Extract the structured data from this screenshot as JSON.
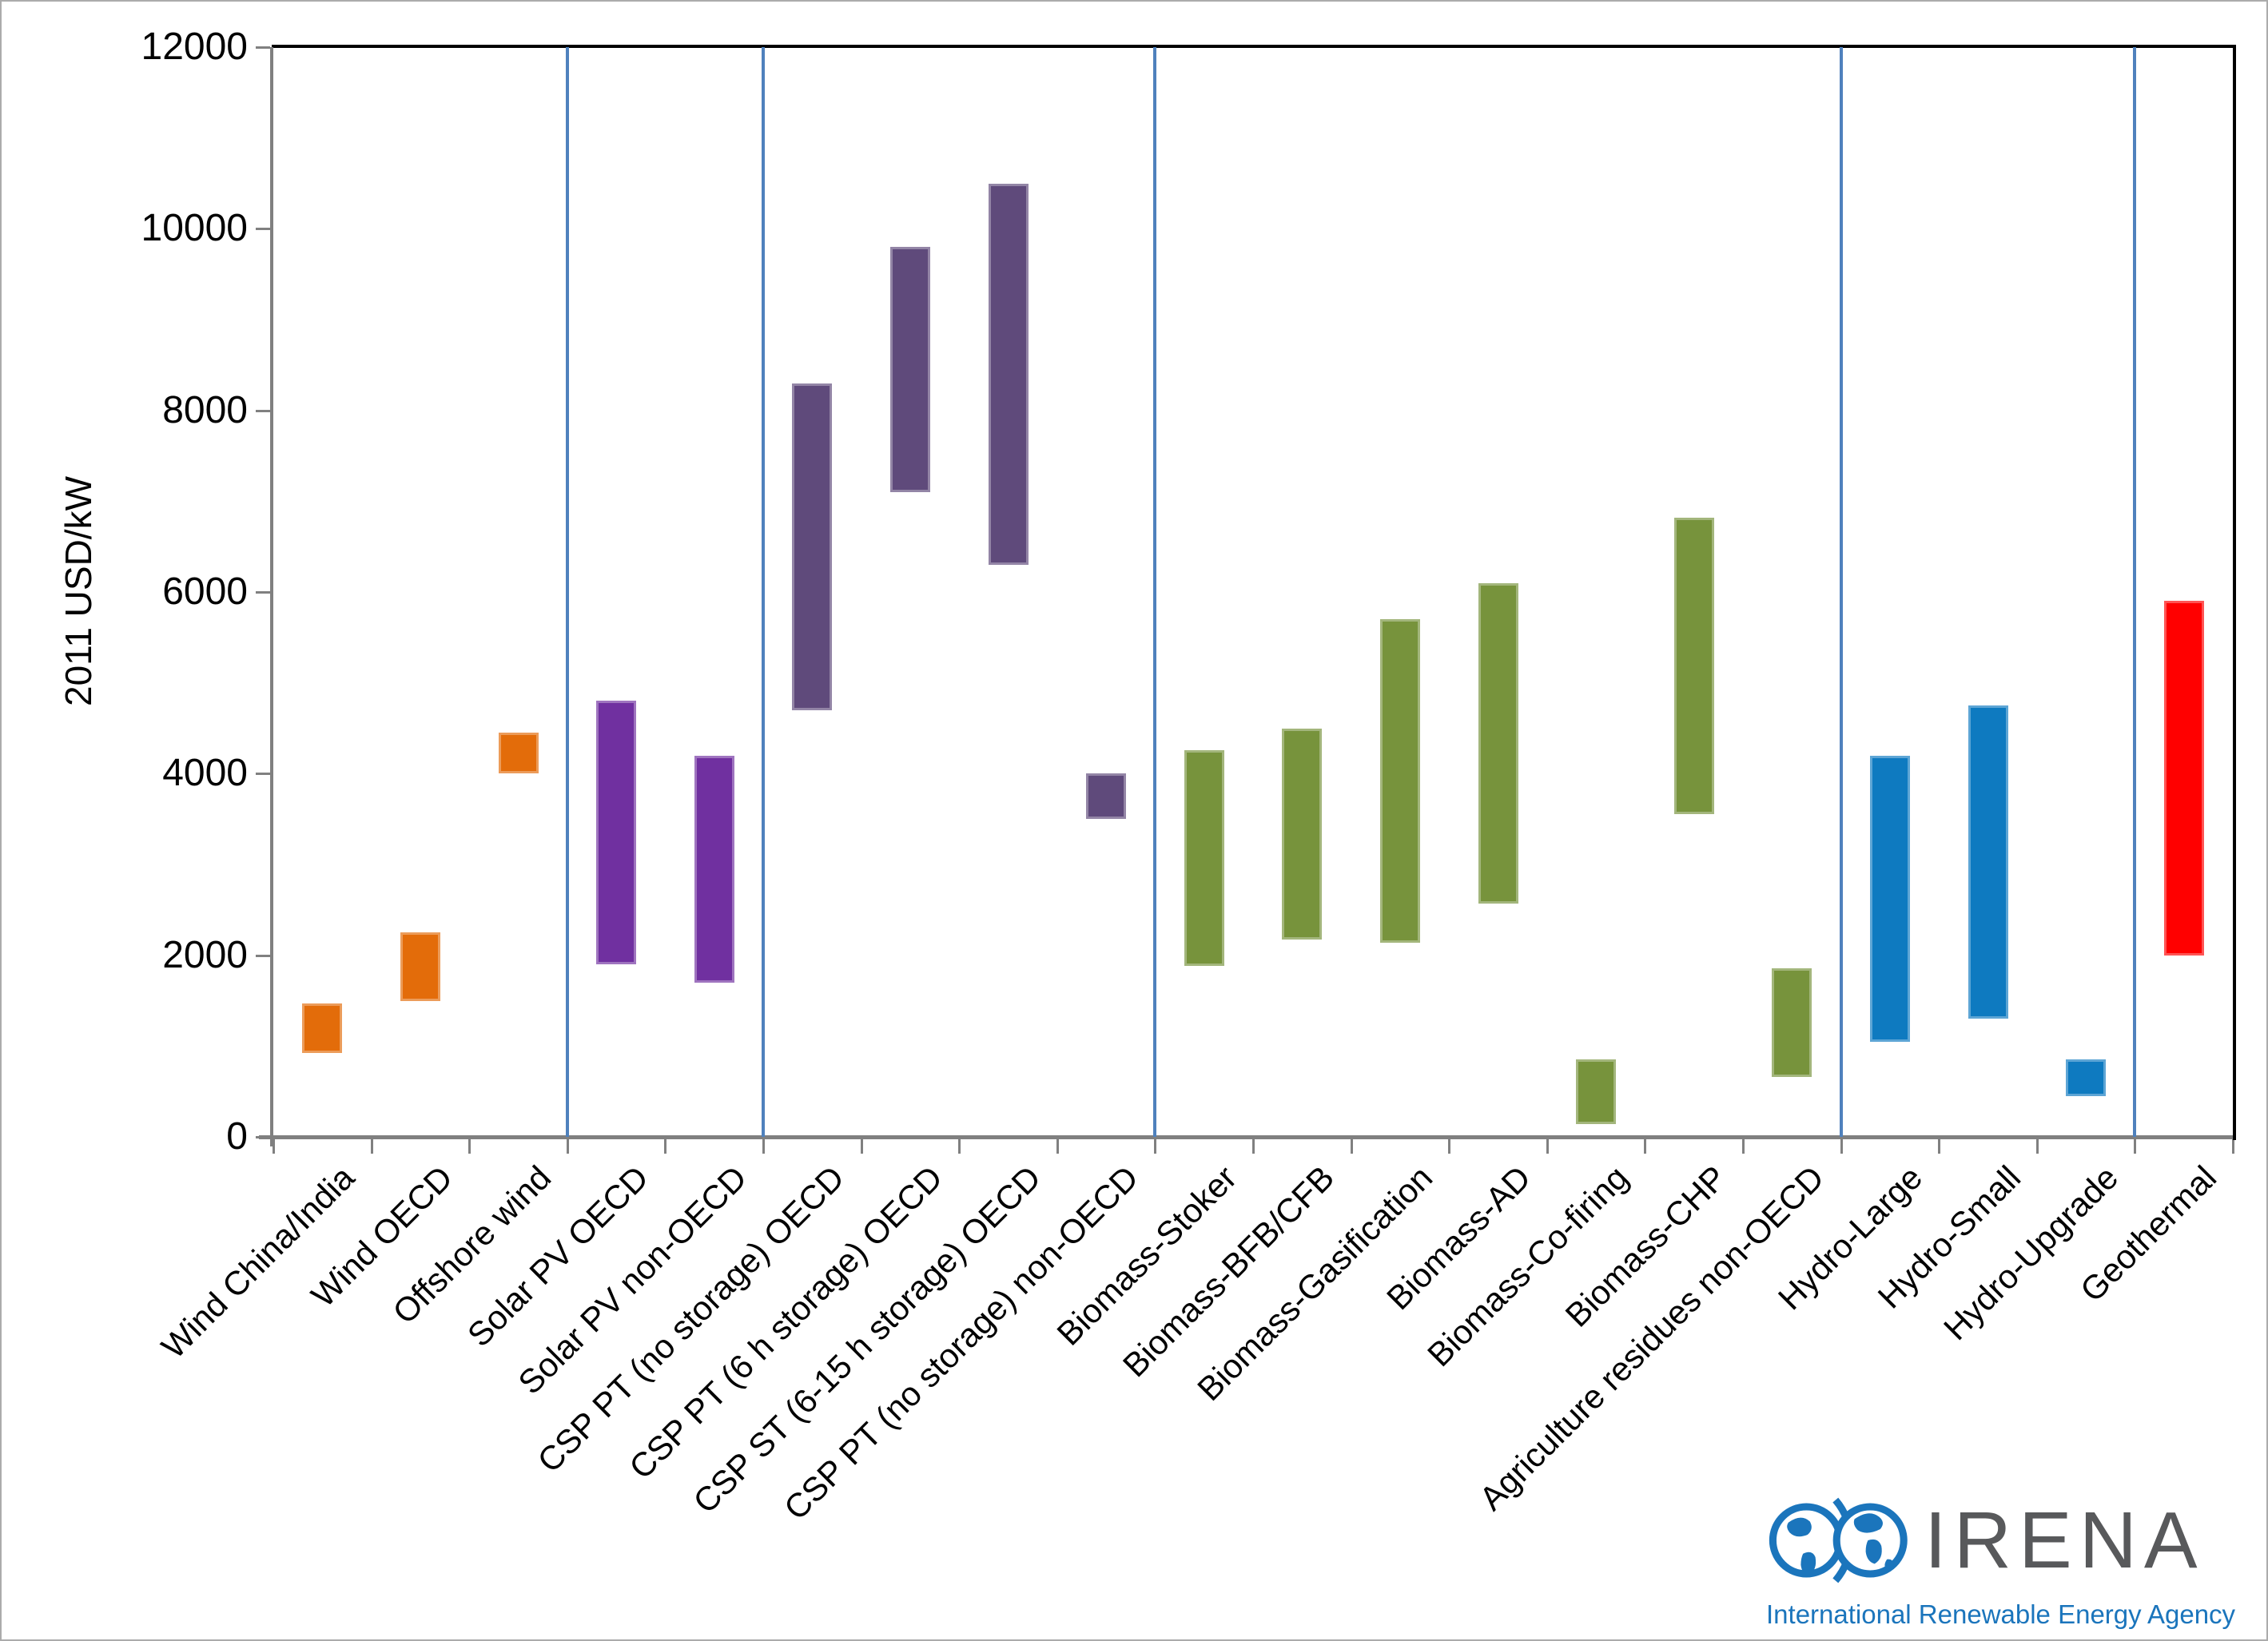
{
  "y_axis": {
    "title": "2011 USD/kW",
    "tick_step": 2000,
    "ticks": [
      0,
      2000,
      4000,
      6000,
      8000,
      10000,
      12000
    ]
  },
  "chart_data": {
    "type": "bar",
    "subtype": "floating-range-columns",
    "title": "",
    "xlabel": "",
    "ylabel": "2011 USD/kW",
    "ylim": [
      0,
      12000
    ],
    "grid": "off",
    "legend": "none",
    "categories": [
      "Wind China/India",
      "Wind OECD",
      "Offshore wind",
      "Solar PV OECD",
      "Solar PV non-OECD",
      "CSP PT (no storage) OECD",
      "CSP PT (6 h storage) OECD",
      "CSP ST (6-15 h storage) OECD",
      "CSP PT (no storage) non-OECD",
      "Biomass-Stoker",
      "Biomass-BFB/CFB",
      "Biomass-Gasification",
      "Biomass-AD",
      "Biomass-Co-firing",
      "Biomass-CHP",
      "Agriculture residues non-OECD",
      "Hydro-Large",
      "Hydro-Small",
      "Hydro-Upgrade",
      "Geothermal"
    ],
    "bars": [
      {
        "label": "Wind China/India",
        "low": 925,
        "high": 1470,
        "group": "wind"
      },
      {
        "label": "Wind OECD",
        "low": 1500,
        "high": 2250,
        "group": "wind"
      },
      {
        "label": "Offshore wind",
        "low": 4000,
        "high": 4450,
        "group": "wind"
      },
      {
        "label": "Solar PV OECD",
        "low": 1900,
        "high": 4800,
        "group": "solar"
      },
      {
        "label": "Solar PV non-OECD",
        "low": 1700,
        "high": 4200,
        "group": "solar"
      },
      {
        "label": "CSP PT (no storage) OECD",
        "low": 4700,
        "high": 8300,
        "group": "csp"
      },
      {
        "label": "CSP PT (6 h storage) OECD",
        "low": 7100,
        "high": 9800,
        "group": "csp"
      },
      {
        "label": "CSP ST (6-15 h storage) OECD",
        "low": 6300,
        "high": 10500,
        "group": "csp"
      },
      {
        "label": "CSP PT (no storage) non-OECD",
        "low": 3500,
        "high": 4000,
        "group": "csp"
      },
      {
        "label": "Biomass-Stoker",
        "low": 1880,
        "high": 4260,
        "group": "biomass"
      },
      {
        "label": "Biomass-BFB/CFB",
        "low": 2170,
        "high": 4500,
        "group": "biomass"
      },
      {
        "label": "Biomass-Gasification",
        "low": 2140,
        "high": 5700,
        "group": "biomass"
      },
      {
        "label": "Biomass-AD",
        "low": 2570,
        "high": 6100,
        "group": "biomass"
      },
      {
        "label": "Biomass-Co-firing",
        "low": 140,
        "high": 850,
        "group": "biomass"
      },
      {
        "label": "Biomass-CHP",
        "low": 3550,
        "high": 6820,
        "group": "biomass"
      },
      {
        "label": "Agriculture residues non-OECD",
        "low": 660,
        "high": 1860,
        "group": "biomass"
      },
      {
        "label": "Hydro-Large",
        "low": 1050,
        "high": 4200,
        "group": "hydro"
      },
      {
        "label": "Hydro-Small",
        "low": 1300,
        "high": 4750,
        "group": "hydro"
      },
      {
        "label": "Hydro-Upgrade",
        "low": 450,
        "high": 850,
        "group": "hydro"
      },
      {
        "label": "Geothermal",
        "low": 2000,
        "high": 5900,
        "group": "geothermal"
      }
    ],
    "group_colors": {
      "wind": "#e36c0a",
      "solar": "#7030a0",
      "csp": "#5f4a7b",
      "biomass": "#77933c",
      "hydro": "#0e7ac0",
      "geothermal": "#ff0000"
    },
    "divider_after_indices": [
      2,
      4,
      8,
      15,
      18
    ],
    "divider_color": "#4f81bd"
  },
  "logo": {
    "globes_icon": "irena-globes-icon",
    "name": "IRENA",
    "subtitle": "International Renewable Energy Agency",
    "name_color": "#58595b",
    "accent_color": "#1b75bc"
  }
}
